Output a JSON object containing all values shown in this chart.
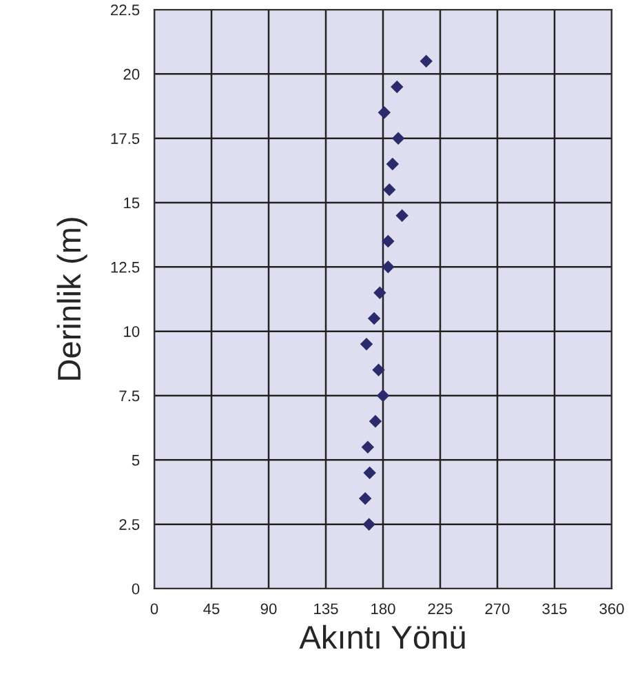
{
  "chart_data": {
    "type": "scatter",
    "xlabel": "Akıntı Yönü",
    "ylabel": "Derinlik (m)",
    "x": [
      214,
      191,
      181,
      192,
      187.5,
      185,
      195,
      184,
      184,
      177.5,
      173,
      167,
      176.5,
      180,
      174,
      168,
      169.5,
      166,
      169
    ],
    "series": [
      {
        "color": "#2b2b6b",
        "values": [
          20.5,
          19.5,
          18.5,
          17.5,
          16.5,
          15.5,
          14.5,
          13.5,
          12.5,
          11.5,
          10.5,
          9.5,
          8.5,
          7.5,
          6.5,
          5.5,
          4.5,
          3.5,
          2.5
        ]
      }
    ],
    "xlim": [
      0,
      360
    ],
    "xticks": [
      0,
      45,
      90,
      135,
      180,
      225,
      270,
      315,
      360
    ],
    "ylim": [
      0,
      22.5
    ],
    "yticks": [
      0,
      2.5,
      5,
      7.5,
      10,
      12.5,
      15,
      17.5,
      20,
      22.5
    ],
    "grid": true,
    "marker": "diamond",
    "legend": false
  }
}
